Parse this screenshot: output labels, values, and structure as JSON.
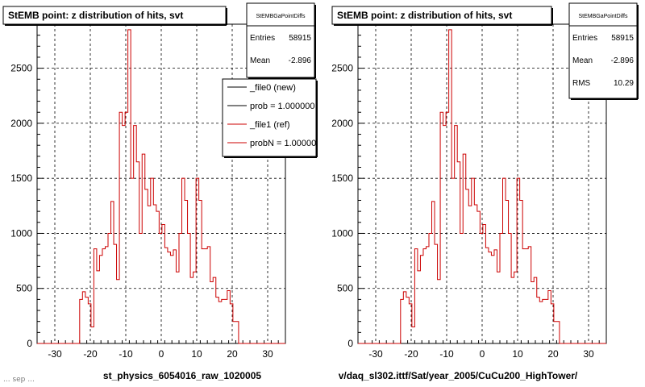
{
  "chart_data": [
    {
      "type": "histogram",
      "title": "StEMB point: z distribution of hits, svt",
      "xlabel": "st_physics_6054016_raw_1020005",
      "ylabel": "",
      "xlim": [
        -35,
        35
      ],
      "ylim": [
        0,
        2900
      ],
      "x_ticks": [
        -30,
        -20,
        -10,
        0,
        10,
        20,
        30
      ],
      "y_ticks": [
        0,
        500,
        1000,
        1500,
        2000,
        2500
      ],
      "grid": true,
      "stats_box": {
        "name": "StEMBGaPointDiffs",
        "rows": [
          {
            "label": "Entries",
            "value": "58915"
          },
          {
            "label": "Mean",
            "value": "-2.896"
          }
        ]
      },
      "legend": {
        "placement": "top-right",
        "entries": [
          {
            "label": "_file0 (new)",
            "color": "#000000"
          },
          {
            "label": "prob = 1.000000",
            "color": "#000000"
          },
          {
            "label": "_file1 (ref)",
            "color": "#cc0000"
          },
          {
            "label": "probN = 1.000000",
            "color": "#cc0000"
          }
        ]
      },
      "series": [
        {
          "color": "#cc0000",
          "bin_width": 0.8,
          "x_start": -35,
          "values": [
            0,
            0,
            0,
            0,
            0,
            0,
            0,
            0,
            0,
            0,
            0,
            0,
            0,
            0,
            0,
            400,
            470,
            420,
            360,
            150,
            860,
            660,
            800,
            860,
            880,
            1000,
            1290,
            900,
            580,
            2100,
            1980,
            2100,
            2850,
            1500,
            1980,
            1650,
            1000,
            1720,
            1400,
            1250,
            1500,
            1260,
            1200,
            1000,
            1080,
            870,
            830,
            800,
            850,
            650,
            1000,
            1500,
            1300,
            1000,
            600,
            650,
            1500,
            1300,
            860,
            860,
            880,
            560,
            600,
            420,
            380,
            400,
            400,
            480,
            360,
            200,
            200,
            0,
            0,
            0,
            0,
            0,
            0,
            0,
            0,
            0,
            0,
            0,
            0,
            0,
            0,
            0,
            0,
            0
          ]
        }
      ]
    },
    {
      "type": "histogram",
      "title": "StEMB point: z distribution of hits, svt",
      "xlabel": "v/daq_sl302.ittf/Sat/year_2005/CuCu200_HighTower/",
      "ylabel": "",
      "xlim": [
        -35,
        35
      ],
      "ylim": [
        0,
        2900
      ],
      "x_ticks": [
        -30,
        -20,
        -10,
        0,
        10,
        20,
        30
      ],
      "y_ticks": [
        0,
        500,
        1000,
        1500,
        2000,
        2500
      ],
      "grid": true,
      "stats_box": {
        "name": "StEMBGaPointDiffs",
        "rows": [
          {
            "label": "Entries",
            "value": "58915"
          },
          {
            "label": "Mean",
            "value": "-2.896"
          },
          {
            "label": "RMS",
            "value": "10.29"
          }
        ]
      },
      "series": [
        {
          "color": "#cc0000",
          "bin_width": 0.8,
          "x_start": -35,
          "values": [
            0,
            0,
            0,
            0,
            0,
            0,
            0,
            0,
            0,
            0,
            0,
            0,
            0,
            0,
            0,
            400,
            470,
            420,
            360,
            150,
            860,
            660,
            800,
            860,
            880,
            1000,
            1290,
            900,
            580,
            2100,
            1980,
            2100,
            2850,
            1500,
            1980,
            1650,
            1000,
            1720,
            1400,
            1250,
            1500,
            1260,
            1200,
            1000,
            1080,
            870,
            830,
            800,
            850,
            650,
            1000,
            1500,
            1300,
            1000,
            600,
            650,
            1500,
            1300,
            860,
            860,
            880,
            560,
            600,
            420,
            380,
            400,
            400,
            480,
            360,
            200,
            200,
            0,
            0,
            0,
            0,
            0,
            0,
            0,
            0,
            0,
            0,
            0,
            0,
            0,
            0,
            0,
            0,
            0
          ]
        }
      ]
    }
  ],
  "footer_note": "... sep ..."
}
